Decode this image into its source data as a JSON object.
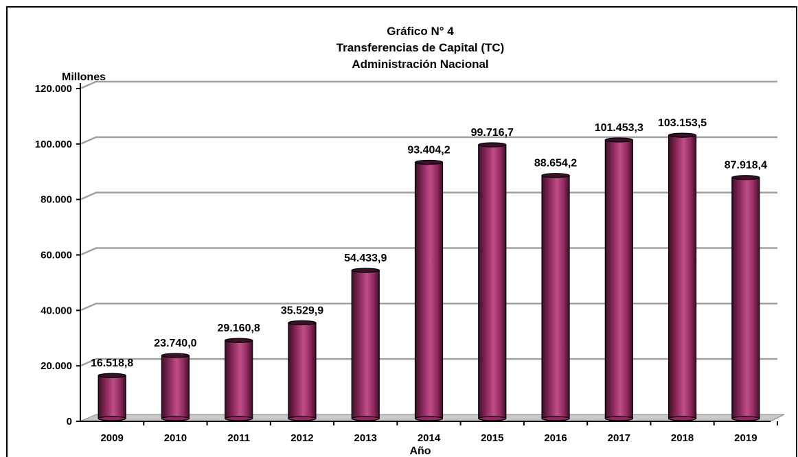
{
  "chart_data": {
    "type": "bar",
    "title": [
      "Gráfico N° 4",
      "Transferencias de Capital (TC)",
      "Administración Nacional"
    ],
    "ylabel": "Millones",
    "xlabel": "Año",
    "categories": [
      "2009",
      "2010",
      "2011",
      "2012",
      "2013",
      "2014",
      "2015",
      "2016",
      "2017",
      "2018",
      "2019"
    ],
    "values": [
      16518.8,
      23740.0,
      29160.8,
      35529.9,
      54433.9,
      93404.2,
      99716.7,
      88654.2,
      101453.3,
      103153.5,
      87918.4
    ],
    "value_labels": [
      "16.518,8",
      "23.740,0",
      "29.160,8",
      "35.529,9",
      "54.433,9",
      "93.404,2",
      "99.716,7",
      "88.654,2",
      "101.453,3",
      "103.153,5",
      "87.918,4"
    ],
    "ylim": [
      0,
      120000
    ],
    "yticks": [
      0,
      20000,
      40000,
      60000,
      80000,
      100000,
      120000
    ],
    "ytick_labels": [
      "0",
      "20.000",
      "40.000",
      "60.000",
      "80.000",
      "100.000",
      "120.000"
    ],
    "grid": true,
    "legend": "none",
    "colors": {
      "bar_dark": "#3e0f28",
      "bar_mid": "#8e2a5e",
      "bar_light": "#c04d89",
      "grid": "#a0a0a0",
      "floor": "#c8c8c8"
    }
  }
}
